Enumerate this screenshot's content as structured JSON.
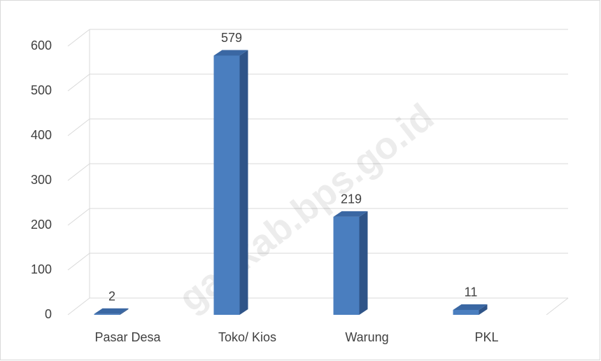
{
  "chart_data": {
    "type": "bar3d",
    "categories": [
      "Pasar Desa",
      "Toko/ Kios",
      "Warung",
      "PKL"
    ],
    "values": [
      2,
      579,
      219,
      11
    ],
    "color": "#4a7ebf",
    "ylim": [
      0,
      600
    ],
    "yticks": [
      0,
      100,
      200,
      300,
      400,
      500,
      600
    ],
    "grid": true,
    "watermark": "gankab.bps.go.id"
  }
}
